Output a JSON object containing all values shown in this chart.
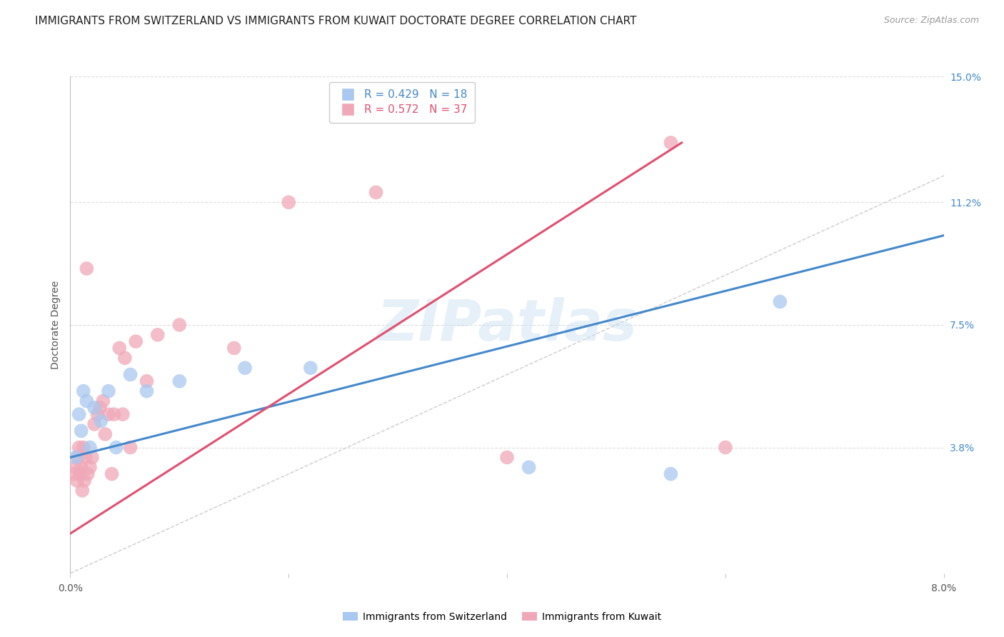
{
  "title": "IMMIGRANTS FROM SWITZERLAND VS IMMIGRANTS FROM KUWAIT DOCTORATE DEGREE CORRELATION CHART",
  "source": "Source: ZipAtlas.com",
  "ylabel": "Doctorate Degree",
  "xlim": [
    0.0,
    8.0
  ],
  "ylim": [
    0.0,
    15.0
  ],
  "yticks": [
    0.0,
    3.8,
    7.5,
    11.2,
    15.0
  ],
  "ytick_labels": [
    "",
    "3.8%",
    "7.5%",
    "11.2%",
    "15.0%"
  ],
  "swiss_R": 0.429,
  "swiss_N": 18,
  "kuwait_R": 0.572,
  "kuwait_N": 37,
  "swiss_color": "#a8c8f0",
  "kuwait_color": "#f0a8b8",
  "swiss_line_color": "#4488cc",
  "kuwait_line_color": "#e05070",
  "ref_line_color": "#cccccc",
  "swiss_x": [
    0.05,
    0.08,
    0.1,
    0.12,
    0.15,
    0.18,
    0.22,
    0.28,
    0.35,
    0.42,
    0.55,
    0.7,
    1.0,
    1.6,
    2.2,
    4.2,
    5.5,
    6.5
  ],
  "swiss_y": [
    3.5,
    4.8,
    4.3,
    5.5,
    5.2,
    3.8,
    5.0,
    4.6,
    5.5,
    3.8,
    6.0,
    5.5,
    5.8,
    6.2,
    6.2,
    3.2,
    3.0,
    8.2
  ],
  "kuwait_x": [
    0.03,
    0.05,
    0.06,
    0.07,
    0.08,
    0.09,
    0.1,
    0.11,
    0.12,
    0.13,
    0.14,
    0.15,
    0.16,
    0.18,
    0.2,
    0.22,
    0.25,
    0.27,
    0.3,
    0.32,
    0.35,
    0.38,
    0.4,
    0.45,
    0.48,
    0.5,
    0.55,
    0.6,
    0.7,
    0.8,
    1.0,
    1.5,
    2.0,
    2.8,
    4.0,
    5.5,
    6.0
  ],
  "kuwait_y": [
    3.0,
    3.2,
    2.8,
    3.5,
    3.8,
    3.0,
    3.2,
    2.5,
    3.8,
    2.8,
    3.5,
    9.2,
    3.0,
    3.2,
    3.5,
    4.5,
    4.8,
    5.0,
    5.2,
    4.2,
    4.8,
    3.0,
    4.8,
    6.8,
    4.8,
    6.5,
    3.8,
    7.0,
    5.8,
    7.2,
    7.5,
    6.8,
    11.2,
    11.5,
    3.5,
    13.0,
    3.8
  ],
  "swiss_line_x0": 0.0,
  "swiss_line_y0": 3.5,
  "swiss_line_x1": 8.0,
  "swiss_line_y1": 10.2,
  "kuwait_line_x0": 0.0,
  "kuwait_line_y0": 1.2,
  "kuwait_line_x1": 5.6,
  "kuwait_line_y1": 13.0,
  "background_color": "#ffffff",
  "grid_color": "#dddddd",
  "title_fontsize": 11,
  "axis_label_fontsize": 10,
  "tick_fontsize": 10,
  "legend_fontsize": 11,
  "source_fontsize": 9,
  "right_tick_color": "#4488cc"
}
